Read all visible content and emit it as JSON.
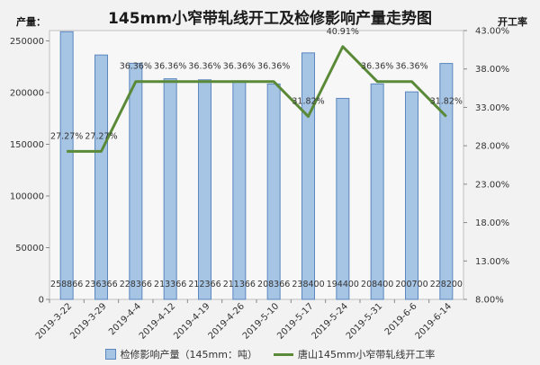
{
  "chart_data": {
    "type": "bar",
    "title": "145mm小窄带轧线开工及检修影响产量走势图",
    "ylabel": "产量：",
    "y2label": "开工率",
    "categories": [
      "2019-3-22",
      "2019-3-29",
      "2019-4-4",
      "2019-4-12",
      "2019-4-19",
      "2019-4-26",
      "2019-5-10",
      "2019-5-17",
      "2019-5-24",
      "2019-5-31",
      "2019-6-6",
      "2019-6-14"
    ],
    "ylim": [
      0,
      260000
    ],
    "yticks": [
      "0",
      "50000",
      "100000",
      "150000",
      "200000",
      "250000"
    ],
    "y2lim": [
      8,
      43
    ],
    "y2ticks": [
      "8.00%",
      "13.00%",
      "18.00%",
      "23.00%",
      "28.00%",
      "33.00%",
      "38.00%",
      "43.00%"
    ],
    "grid": false,
    "legend_position": "bottom",
    "series": [
      {
        "name": "检修影响产量（145mm：吨）",
        "type": "bar",
        "axis": "left",
        "color": "#a6c4e4",
        "values": [
          258866,
          236366,
          228366,
          213366,
          212366,
          211366,
          208366,
          238400,
          194400,
          208400,
          200700,
          228200
        ],
        "labels": [
          "258866",
          "236366",
          "228366",
          "213366",
          "212366",
          "211366",
          "208366",
          "238400",
          "194400",
          "208400",
          "200700",
          "228200"
        ]
      },
      {
        "name": "唐山145mm小窄带轧线开工率",
        "type": "line",
        "axis": "right",
        "color": "#5a8a38",
        "values": [
          27.27,
          27.27,
          36.36,
          36.36,
          36.36,
          36.36,
          36.36,
          31.82,
          40.91,
          36.36,
          36.36,
          31.82
        ],
        "labels": [
          "27.27%",
          "27.27%",
          "36.36%",
          "36.36%",
          "36.36%",
          "36.36%",
          "36.36%",
          "31.82%",
          "40.91%",
          "36.36%",
          "36.36%",
          "31.82%"
        ]
      }
    ]
  }
}
